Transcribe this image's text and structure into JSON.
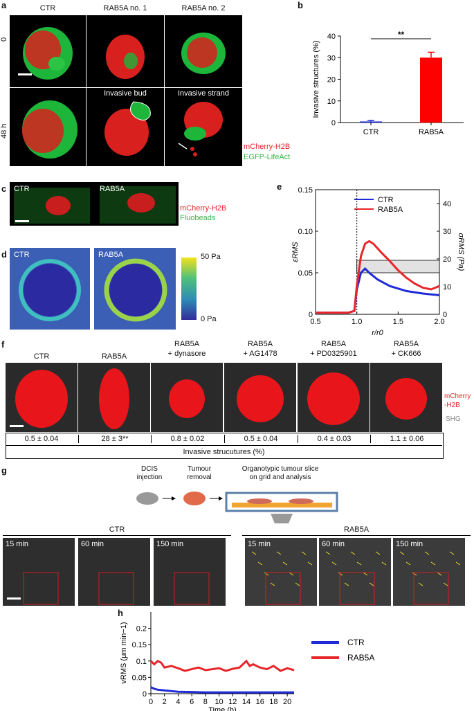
{
  "panel_letters": {
    "a": "a",
    "b": "b",
    "c": "c",
    "d": "d",
    "e": "e",
    "f": "f",
    "g": "g",
    "h": "h"
  },
  "panel_a": {
    "columns": [
      "CTR",
      "RAB5A no. 1",
      "RAB5A no. 2"
    ],
    "rows": [
      "0",
      "48 h"
    ],
    "annotations": [
      "Invasive bud",
      "Invasive strand"
    ],
    "legend": [
      "mCherry-H2B",
      "EGFP-LifeAct"
    ]
  },
  "panel_c": {
    "labels": [
      "CTR",
      "RAB5A"
    ],
    "legend": [
      "mCherry-H2B",
      "Fluobeads"
    ]
  },
  "panel_d": {
    "labels": [
      "CTR",
      "RAB5A"
    ],
    "colorbar_max": "50 Pa",
    "colorbar_min": "0 Pa"
  },
  "panel_f": {
    "columns": [
      "CTR",
      "RAB5A",
      "RAB5A\n+ dynasore",
      "RAB5A\n+ AG1478",
      "RAB5A\n+ PD0325901",
      "RAB5A\n+ CK666"
    ],
    "values": [
      "0.5 ± 0.04",
      "28 ± 3**",
      "0.8 ± 0.02",
      "0.5 ± 0.04",
      "0.4 ± 0.03",
      "1.1 ± 0.06"
    ],
    "row_caption": "Invasive strucutures (%)",
    "legend": [
      "mCherry\n-H2B",
      "SHG"
    ]
  },
  "panel_g": {
    "schematic": [
      "DCIS\ninjection",
      "Tumour\nremoval",
      "Organotypic tumour slice\non grid and analysis"
    ],
    "groups": [
      "CTR",
      "RAB5A"
    ],
    "times": [
      "15 min",
      "60 min",
      "150 min"
    ]
  },
  "chart_data": [
    {
      "panel": "b",
      "type": "bar",
      "categories": [
        "CTR",
        "RAB5A"
      ],
      "values": [
        0.5,
        30
      ],
      "errors": [
        0.5,
        2.5
      ],
      "colors": [
        "#1f2bd6",
        "#ff0000"
      ],
      "ylabel": "Invasive structures (%)",
      "ylim": [
        0,
        40
      ],
      "yticks": [
        0,
        10,
        20,
        30,
        40
      ],
      "significance": "**"
    },
    {
      "panel": "e",
      "type": "line",
      "xlabel": "r/r0",
      "ylabel_left": "εRMS",
      "ylabel_right": "σRMS (Pa)",
      "xlim": [
        0.5,
        2.0
      ],
      "ylim_left": [
        0,
        0.15
      ],
      "ylim_right": [
        0,
        45
      ],
      "xticks": [
        0.5,
        1.0,
        1.5,
        2.0
      ],
      "yticks_left": [
        0,
        0.05,
        0.1,
        0.15
      ],
      "yticks_right": [
        0,
        10,
        20,
        30,
        40
      ],
      "band": [
        0.05,
        0.065
      ],
      "series": [
        {
          "name": "CTR",
          "color": "#1f2bd6",
          "x": [
            0.5,
            0.9,
            0.97,
            1.0,
            1.05,
            1.1,
            1.15,
            1.25,
            1.4,
            1.6,
            1.8,
            1.9,
            2.0
          ],
          "y": [
            0.002,
            0.002,
            0.004,
            0.03,
            0.05,
            0.055,
            0.05,
            0.042,
            0.034,
            0.028,
            0.025,
            0.024,
            0.023
          ]
        },
        {
          "name": "RAB5A",
          "color": "#e8262a",
          "x": [
            0.5,
            0.9,
            0.97,
            1.0,
            1.05,
            1.1,
            1.15,
            1.2,
            1.3,
            1.4,
            1.5,
            1.6,
            1.7,
            1.8,
            1.9,
            2.0
          ],
          "y": [
            0.002,
            0.002,
            0.004,
            0.035,
            0.07,
            0.085,
            0.088,
            0.085,
            0.074,
            0.064,
            0.053,
            0.044,
            0.037,
            0.032,
            0.03,
            0.034
          ]
        }
      ]
    },
    {
      "panel": "h",
      "type": "line",
      "xlabel": "Time (h)",
      "ylabel": "vRMS (μm min−1)",
      "xlim": [
        0,
        21
      ],
      "ylim": [
        0,
        0.25
      ],
      "xticks": [
        0,
        2,
        4,
        6,
        8,
        10,
        12,
        14,
        16,
        18,
        20
      ],
      "yticks": [
        0,
        0.05,
        0.1,
        0.15,
        0.2
      ],
      "series": [
        {
          "name": "CTR",
          "color": "#1f2bd6",
          "x": [
            0,
            0.5,
            1,
            2,
            3,
            4,
            6,
            8,
            10,
            12,
            14,
            16,
            18,
            20,
            21
          ],
          "y": [
            0.02,
            0.015,
            0.012,
            0.01,
            0.008,
            0.006,
            0.005,
            0.004,
            0.004,
            0.004,
            0.004,
            0.004,
            0.004,
            0.004,
            0.004
          ]
        },
        {
          "name": "RAB5A",
          "color": "#e8262a",
          "x": [
            0,
            0.5,
            1,
            1.5,
            2,
            3,
            4,
            5,
            6,
            7,
            8,
            9,
            10,
            11,
            12,
            13,
            14,
            14.5,
            15,
            16,
            17,
            18,
            19,
            20,
            21
          ],
          "y": [
            0.1,
            0.09,
            0.1,
            0.095,
            0.08,
            0.085,
            0.078,
            0.07,
            0.075,
            0.08,
            0.072,
            0.075,
            0.078,
            0.07,
            0.076,
            0.08,
            0.1,
            0.085,
            0.09,
            0.08,
            0.075,
            0.085,
            0.07,
            0.078,
            0.072
          ]
        }
      ]
    }
  ]
}
